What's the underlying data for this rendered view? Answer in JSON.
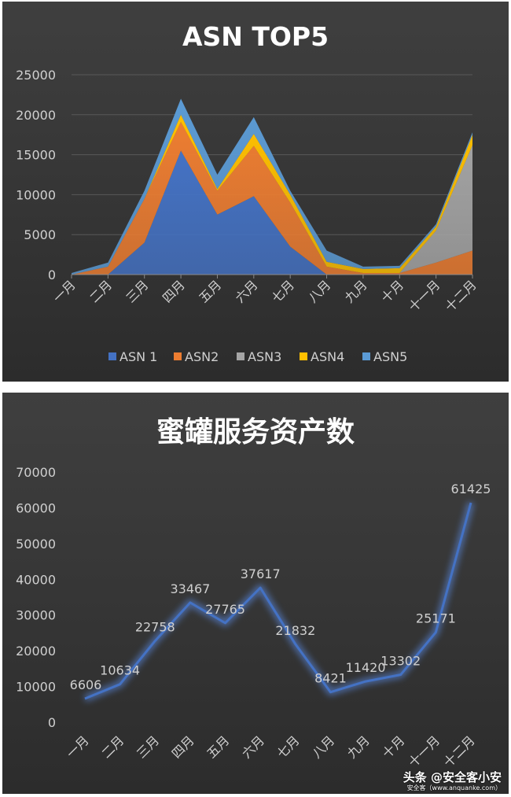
{
  "chart_data": [
    {
      "type": "area",
      "stacked": true,
      "title": "ASN TOP5",
      "categories": [
        "一月",
        "二月",
        "三月",
        "四月",
        "五月",
        "六月",
        "七月",
        "八月",
        "九月",
        "十月",
        "十一月",
        "十二月"
      ],
      "ylim": [
        0,
        25000
      ],
      "yticks": [
        "0",
        "5000",
        "10000",
        "15000",
        "20000",
        "25000"
      ],
      "grid": true,
      "legend_position": "bottom",
      "series": [
        {
          "name": "ASN 1",
          "color": "#4472c4",
          "values": [
            0,
            0,
            4000,
            15500,
            7500,
            9800,
            3500,
            0,
            0,
            0,
            0,
            0
          ]
        },
        {
          "name": "ASN2",
          "color": "#ed7d31",
          "values": [
            0,
            1000,
            5500,
            3600,
            3000,
            6300,
            5500,
            1000,
            200,
            200,
            1500,
            3000
          ]
        },
        {
          "name": "ASN3",
          "color": "#a5a5a5",
          "values": [
            0,
            0,
            0,
            0,
            0,
            0,
            0,
            0,
            0,
            0,
            4000,
            13200
          ]
        },
        {
          "name": "ASN4",
          "color": "#ffc000",
          "values": [
            0,
            0,
            0,
            900,
            200,
            1500,
            1000,
            600,
            500,
            600,
            500,
            1300
          ]
        },
        {
          "name": "ASN5",
          "color": "#5b9bd5",
          "values": [
            200,
            500,
            1000,
            2000,
            1800,
            2100,
            500,
            1400,
            300,
            300,
            300,
            300
          ]
        }
      ]
    },
    {
      "type": "line",
      "title": "蜜罐服务资产数",
      "categories": [
        "一月",
        "二月",
        "三月",
        "四月",
        "五月",
        "六月",
        "七月",
        "八月",
        "九月",
        "十月",
        "十一月",
        "十二月"
      ],
      "ylim": [
        0,
        70000
      ],
      "yticks": [
        "0",
        "10000",
        "20000",
        "30000",
        "40000",
        "50000",
        "60000",
        "70000"
      ],
      "grid": false,
      "series": [
        {
          "color": "#4472c4",
          "values": [
            6606,
            10634,
            22758,
            33467,
            27765,
            37617,
            21832,
            8421,
            11420,
            13302,
            25171,
            61425
          ]
        }
      ]
    }
  ],
  "watermark": {
    "main": "头条 @安全客小安",
    "sub": "安全客（www.anquanke.com）"
  }
}
